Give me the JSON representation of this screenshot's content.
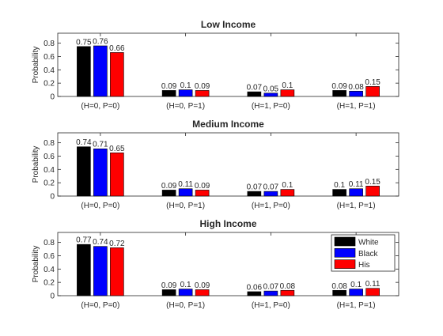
{
  "chart_data": [
    {
      "type": "bar",
      "title": "Low Income",
      "ylabel": "Probability",
      "xlabel": "",
      "ylim": [
        0,
        0.95
      ],
      "yticks": [
        "0",
        "0.2",
        "0.4",
        "0.6",
        "0.8"
      ],
      "categories": [
        "(H=0, P=0)",
        "(H=0, P=1)",
        "(H=1, P=0)",
        "(H=1, P=1)"
      ],
      "series": [
        {
          "name": "White",
          "color": "#000000",
          "values": [
            0.75,
            0.09,
            0.07,
            0.09
          ],
          "labels": [
            "0.75",
            "0.09",
            "0.07",
            "0.09"
          ]
        },
        {
          "name": "Black",
          "color": "#0000ff",
          "values": [
            0.76,
            0.1,
            0.05,
            0.08
          ],
          "labels": [
            "0.76",
            "0.1",
            "0.05",
            "0.08"
          ]
        },
        {
          "name": "His",
          "color": "#ff0000",
          "values": [
            0.66,
            0.09,
            0.1,
            0.15
          ],
          "labels": [
            "0.66",
            "0.09",
            "0.1",
            "0.15"
          ]
        }
      ],
      "legend": false
    },
    {
      "type": "bar",
      "title": "Medium Income",
      "ylabel": "Probability",
      "xlabel": "",
      "ylim": [
        0,
        0.95
      ],
      "yticks": [
        "0",
        "0.2",
        "0.4",
        "0.6",
        "0.8"
      ],
      "categories": [
        "(H=0, P=0)",
        "(H=0, P=1)",
        "(H=1, P=0)",
        "(H=1, P=1)"
      ],
      "series": [
        {
          "name": "White",
          "color": "#000000",
          "values": [
            0.74,
            0.09,
            0.07,
            0.1
          ],
          "labels": [
            "0.74",
            "0.09",
            "0.07",
            "0.1"
          ]
        },
        {
          "name": "Black",
          "color": "#0000ff",
          "values": [
            0.71,
            0.11,
            0.07,
            0.11
          ],
          "labels": [
            "0.71",
            "0.11",
            "0.07",
            "0.11"
          ]
        },
        {
          "name": "His",
          "color": "#ff0000",
          "values": [
            0.65,
            0.09,
            0.1,
            0.15
          ],
          "labels": [
            "0.65",
            "0.09",
            "0.1",
            "0.15"
          ]
        }
      ],
      "legend": false
    },
    {
      "type": "bar",
      "title": "High Income",
      "ylabel": "Probability",
      "xlabel": "",
      "ylim": [
        0,
        0.95
      ],
      "yticks": [
        "0",
        "0.2",
        "0.4",
        "0.6",
        "0.8"
      ],
      "categories": [
        "(H=0, P=0)",
        "(H=0, P=1)",
        "(H=1, P=0)",
        "(H=1, P=1)"
      ],
      "series": [
        {
          "name": "White",
          "color": "#000000",
          "values": [
            0.77,
            0.09,
            0.06,
            0.08
          ],
          "labels": [
            "0.77",
            "0.09",
            "0.06",
            "0.08"
          ]
        },
        {
          "name": "Black",
          "color": "#0000ff",
          "values": [
            0.74,
            0.1,
            0.07,
            0.1
          ],
          "labels": [
            "0.74",
            "0.1",
            "0.07",
            "0.1"
          ]
        },
        {
          "name": "His",
          "color": "#ff0000",
          "values": [
            0.72,
            0.09,
            0.08,
            0.11
          ],
          "labels": [
            "0.72",
            "0.09",
            "0.08",
            "0.11"
          ]
        }
      ],
      "legend": true,
      "legend_position": "top-right"
    }
  ]
}
